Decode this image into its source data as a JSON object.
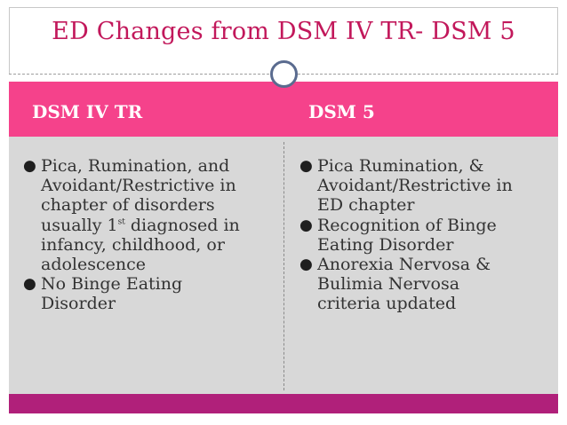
{
  "slide": {
    "title": "ED Changes from DSM IV TR- DSM 5",
    "columns": [
      {
        "header": "DSM IV TR",
        "bullets": [
          {
            "lines": [
              "Pica, Rumination, and",
              "Avoidant/Restrictive in",
              "chapter of disorders"
            ],
            "line4_before": "usually 1",
            "line4_sup": "st",
            "line4_after": " diagnosed in",
            "lines_after": [
              "infancy, childhood, or",
              "adolescence"
            ]
          },
          {
            "lines": [
              "No Binge Eating",
              "Disorder"
            ]
          }
        ]
      },
      {
        "header": "DSM 5",
        "bullets": [
          {
            "lines": [
              "Pica Rumination, &",
              "Avoidant/Restrictive in",
              "ED chapter"
            ]
          },
          {
            "lines": [
              "Recognition of Binge",
              "Eating Disorder"
            ]
          },
          {
            "lines": [
              "Anorexia Nervosa &",
              "Bulimia Nervosa",
              "criteria updated"
            ]
          }
        ]
      }
    ]
  },
  "colors": {
    "title": "#c2185b",
    "header_band": "#f5428b",
    "content_bg": "#d8d8d8",
    "bottom_bar": "#b0207a",
    "circle": "#5a6b8f"
  },
  "icons": {
    "bullet": "filled-circle-bullet-icon",
    "title_ornament": "ring-ornament-icon"
  }
}
